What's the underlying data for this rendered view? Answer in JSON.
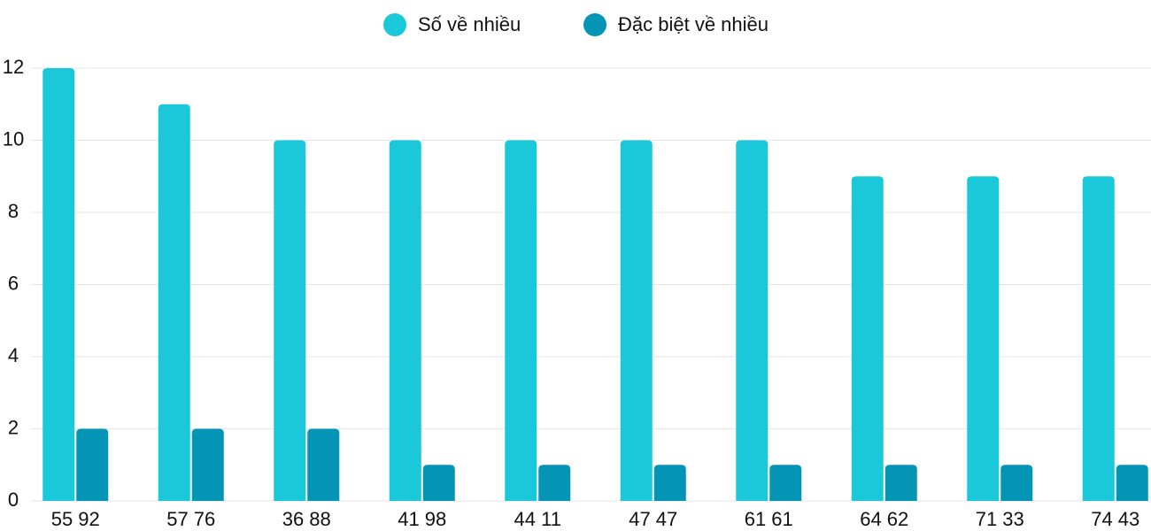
{
  "chart_data": {
    "type": "bar",
    "categories": [
      "55 92",
      "57 76",
      "36 88",
      "41 98",
      "44 11",
      "47 47",
      "61 61",
      "64 62",
      "71 33",
      "74 43"
    ],
    "series": [
      {
        "name": "Số về nhiều",
        "color": "#1bc8da",
        "values": [
          12,
          11,
          10,
          10,
          10,
          10,
          10,
          9,
          9,
          9
        ]
      },
      {
        "name": "Đặc biệt về nhiều",
        "color": "#0494b5",
        "values": [
          2,
          2,
          2,
          1,
          1,
          1,
          1,
          1,
          1,
          1
        ]
      }
    ],
    "ylim": [
      0,
      12
    ],
    "yticks": [
      0,
      2,
      4,
      6,
      8,
      10,
      12
    ],
    "grid": true,
    "legend": "top"
  }
}
